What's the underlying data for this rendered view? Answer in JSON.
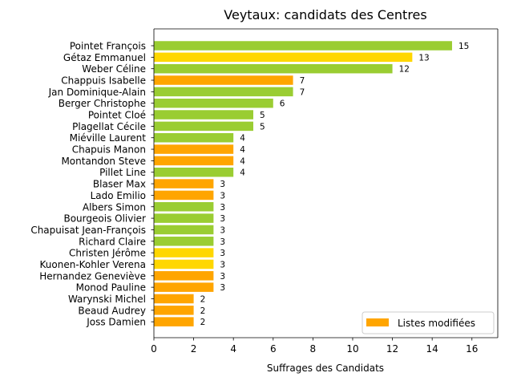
{
  "chart_data": {
    "type": "bar",
    "orientation": "horizontal",
    "title": "Veytaux: candidats des Centres",
    "xlabel": "Suffrages des Candidats",
    "ylabel": "",
    "xlim": [
      0,
      17.3
    ],
    "xticks": [
      0,
      2,
      4,
      6,
      8,
      10,
      12,
      14,
      16
    ],
    "grid": false,
    "legend": {
      "position": "lower-right",
      "entries": [
        {
          "label": "Listes modifiées",
          "color": "#FFA500"
        }
      ]
    },
    "colors": {
      "green": "#9ACD32",
      "yellow": "#FFD700",
      "orange": "#FFA500"
    },
    "categories": [
      "Pointet François",
      "Gétaz Emmanuel",
      "Weber Céline",
      "Chappuis Isabelle",
      "Jan Dominique-Alain",
      "Berger Christophe",
      "Pointet Cloé",
      "Plagellat Cécile",
      "Miéville Laurent",
      "Chapuis Manon",
      "Montandon Steve",
      "Pillet Line",
      "Blaser Max",
      "Lado Emilio",
      "Albers Simon",
      "Bourgeois Olivier",
      "Chapuisat Jean-François",
      "Richard Claire",
      "Christen Jérôme",
      "Kuonen-Kohler Verena",
      "Hernandez Geneviève",
      "Monod Pauline",
      "Warynski Michel",
      "Beaud Audrey",
      "Joss Damien"
    ],
    "values": [
      15,
      13,
      12,
      7,
      7,
      6,
      5,
      5,
      4,
      4,
      4,
      4,
      3,
      3,
      3,
      3,
      3,
      3,
      3,
      3,
      3,
      3,
      2,
      2,
      2
    ],
    "bar_colors": [
      "#9ACD32",
      "#FFD700",
      "#9ACD32",
      "#FFA500",
      "#9ACD32",
      "#9ACD32",
      "#9ACD32",
      "#9ACD32",
      "#9ACD32",
      "#FFA500",
      "#FFA500",
      "#9ACD32",
      "#FFA500",
      "#FFA500",
      "#9ACD32",
      "#9ACD32",
      "#9ACD32",
      "#9ACD32",
      "#FFD700",
      "#FFD700",
      "#FFA500",
      "#FFA500",
      "#FFA500",
      "#FFA500",
      "#FFA500"
    ]
  }
}
